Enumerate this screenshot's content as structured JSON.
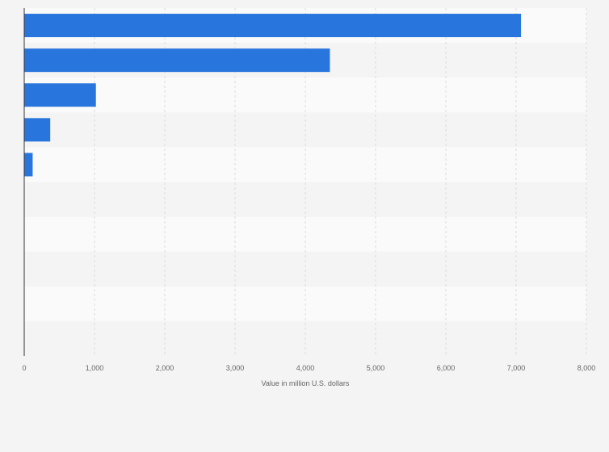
{
  "chart_data": {
    "type": "bar",
    "orientation": "horizontal",
    "categories": [
      "",
      "",
      "",
      "",
      "",
      "",
      "",
      "",
      "",
      ""
    ],
    "values": [
      7070,
      4350,
      1020,
      370,
      120,
      0,
      0,
      0,
      0,
      0
    ],
    "xlabel": "Value in million U.S. dollars",
    "ylabel": "",
    "xlim": [
      0,
      8000
    ],
    "x_ticks": [
      0,
      1000,
      2000,
      3000,
      4000,
      5000,
      6000,
      7000,
      8000
    ],
    "x_tick_labels": [
      "0",
      "1,000",
      "2,000",
      "3,000",
      "4,000",
      "5,000",
      "6,000",
      "7,000",
      "8,000"
    ],
    "grid": true,
    "legend": "none",
    "colors": {
      "bar": "#2876dd",
      "band_light": "#fafafa",
      "band_dark": "#f4f4f4",
      "gridline": "#dcdcdc",
      "axis": "#333333",
      "text": "#666666"
    }
  }
}
